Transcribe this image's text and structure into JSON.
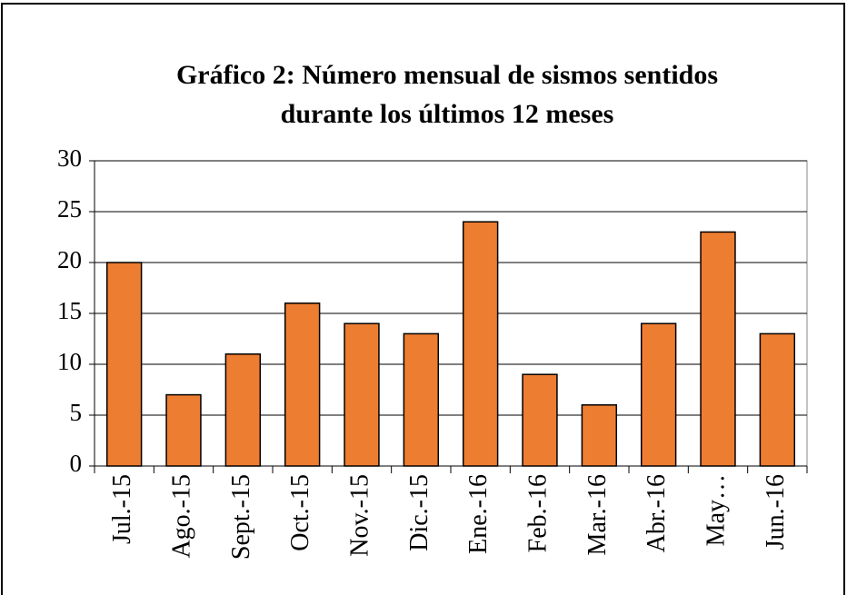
{
  "chart_data": {
    "type": "bar",
    "title": [
      "Gráfico 2: Número mensual de sismos sentidos",
      "durante los últimos 12 meses"
    ],
    "categories": [
      "Jul.-15",
      "Ago.-15",
      "Sept.-15",
      "Oct.-15",
      "Nov.-15",
      "Dic.-15",
      "Ene.-16",
      "Feb.-16",
      "Mar.-16",
      "Abr.-16",
      "May…",
      "Jun.-16"
    ],
    "values": [
      20,
      7,
      11,
      16,
      14,
      13,
      24,
      9,
      6,
      14,
      23,
      13
    ],
    "color": "#ed7d31",
    "ylim": [
      0,
      30
    ],
    "yticks": [
      0,
      5,
      10,
      15,
      20,
      25,
      30
    ],
    "grid": true
  }
}
